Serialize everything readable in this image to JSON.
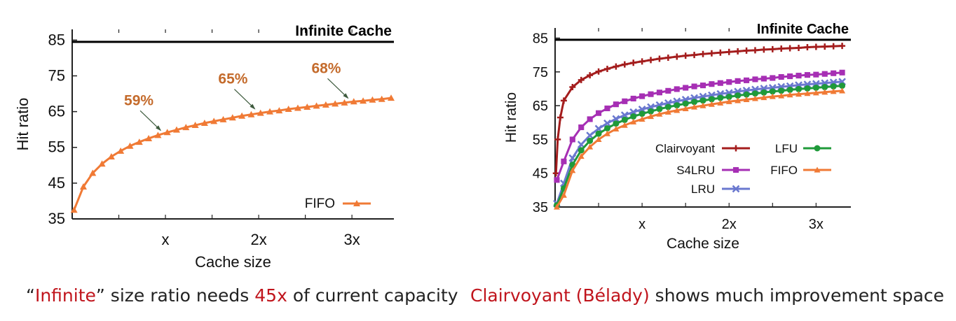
{
  "charts": {
    "chart_data": [
      {
        "type": "line",
        "title": "",
        "xlabel": "Cache size",
        "ylabel": "Hit ratio",
        "xlim": [
          0,
          3.45
        ],
        "ylim": [
          35,
          88
        ],
        "yticks": [
          35,
          45,
          55,
          65,
          75,
          85
        ],
        "xticks": [
          {
            "v": 1,
            "label": "x"
          },
          {
            "v": 2,
            "label": "2x"
          },
          {
            "v": 3,
            "label": "3x"
          }
        ],
        "grid": false,
        "legend": "bottom-right",
        "reference_line": {
          "label": "Infinite Cache",
          "y": 84.5
        },
        "annotations": [
          {
            "text": "59%",
            "x": 0.97,
            "y": 59
          },
          {
            "text": "65%",
            "x": 1.98,
            "y": 65
          },
          {
            "text": "68%",
            "x": 2.98,
            "y": 68
          }
        ],
        "series": [
          {
            "name": "FIFO",
            "color": "#f07a35",
            "marker": "triangle",
            "x": [
              0.02,
              0.12,
              0.22,
              0.32,
              0.42,
              0.52,
              0.62,
              0.72,
              0.82,
              0.92,
              1.02,
              1.12,
              1.22,
              1.32,
              1.42,
              1.52,
              1.62,
              1.72,
              1.82,
              1.92,
              2.02,
              2.12,
              2.22,
              2.32,
              2.42,
              2.52,
              2.62,
              2.72,
              2.82,
              2.92,
              3.02,
              3.12,
              3.22,
              3.32,
              3.42
            ],
            "values": [
              37.5,
              44.0,
              47.8,
              50.4,
              52.4,
              54.0,
              55.4,
              56.5,
              57.5,
              58.4,
              59.2,
              59.9,
              60.6,
              61.2,
              61.8,
              62.3,
              62.8,
              63.3,
              63.8,
              64.2,
              64.6,
              65.0,
              65.3,
              65.7,
              66.0,
              66.3,
              66.6,
              66.9,
              67.2,
              67.5,
              67.8,
              68.0,
              68.3,
              68.5,
              68.8
            ]
          }
        ]
      },
      {
        "type": "line",
        "title": "",
        "xlabel": "Cache size",
        "ylabel": "Hit ratio",
        "xlim": [
          0,
          3.4
        ],
        "ylim": [
          35,
          88
        ],
        "yticks": [
          35,
          45,
          55,
          65,
          75,
          85
        ],
        "xticks": [
          {
            "v": 1,
            "label": "x"
          },
          {
            "v": 2,
            "label": "2x"
          },
          {
            "v": 3,
            "label": "3x"
          }
        ],
        "grid": false,
        "legend": "center",
        "reference_line": {
          "label": "Infinite Cache",
          "y": 84.5
        },
        "series": [
          {
            "name": "Clairvoyant",
            "color": "#a41d1d",
            "marker": "plus",
            "x": [
              0.01,
              0.03,
              0.06,
              0.1,
              0.2,
              0.3,
              0.4,
              0.5,
              0.6,
              0.7,
              0.8,
              0.9,
              1.0,
              1.1,
              1.2,
              1.3,
              1.4,
              1.5,
              1.6,
              1.7,
              1.8,
              1.9,
              2.0,
              2.1,
              2.2,
              2.3,
              2.4,
              2.5,
              2.6,
              2.7,
              2.8,
              2.9,
              3.0,
              3.1,
              3.2,
              3.3
            ],
            "values": [
              45.0,
              55.0,
              61.5,
              66.5,
              70.5,
              72.6,
              74.0,
              75.1,
              75.9,
              76.6,
              77.2,
              77.7,
              78.1,
              78.5,
              78.9,
              79.2,
              79.5,
              79.8,
              80.0,
              80.3,
              80.5,
              80.7,
              80.9,
              81.1,
              81.3,
              81.4,
              81.6,
              81.7,
              81.9,
              82.0,
              82.1,
              82.3,
              82.4,
              82.5,
              82.6,
              82.7
            ]
          },
          {
            "name": "S4LRU",
            "color": "#a62fb4",
            "marker": "square",
            "x": [
              0.02,
              0.1,
              0.2,
              0.3,
              0.4,
              0.5,
              0.6,
              0.7,
              0.8,
              0.9,
              1.0,
              1.1,
              1.2,
              1.3,
              1.4,
              1.5,
              1.6,
              1.7,
              1.8,
              1.9,
              2.0,
              2.1,
              2.2,
              2.3,
              2.4,
              2.5,
              2.6,
              2.7,
              2.8,
              2.9,
              3.0,
              3.1,
              3.2,
              3.3
            ],
            "values": [
              43.0,
              48.5,
              55.0,
              58.6,
              61.0,
              62.8,
              64.2,
              65.4,
              66.3,
              67.1,
              67.8,
              68.4,
              68.9,
              69.4,
              69.9,
              70.3,
              70.7,
              71.0,
              71.4,
              71.7,
              72.0,
              72.3,
              72.5,
              72.8,
              73.0,
              73.2,
              73.5,
              73.7,
              73.9,
              74.1,
              74.2,
              74.4,
              74.6,
              74.8
            ]
          },
          {
            "name": "LRU",
            "color": "#6a78cf",
            "marker": "x",
            "x": [
              0.02,
              0.1,
              0.2,
              0.3,
              0.4,
              0.5,
              0.6,
              0.7,
              0.8,
              0.9,
              1.0,
              1.1,
              1.2,
              1.3,
              1.4,
              1.5,
              1.6,
              1.7,
              1.8,
              1.9,
              2.0,
              2.1,
              2.2,
              2.3,
              2.4,
              2.5,
              2.6,
              2.7,
              2.8,
              2.9,
              3.0,
              3.1,
              3.2,
              3.3
            ],
            "values": [
              36.0,
              42.0,
              49.5,
              53.5,
              56.2,
              58.2,
              59.8,
              61.1,
              62.2,
              63.1,
              63.9,
              64.6,
              65.2,
              65.8,
              66.3,
              66.8,
              67.3,
              67.7,
              68.1,
              68.5,
              68.8,
              69.2,
              69.5,
              69.8,
              70.1,
              70.3,
              70.6,
              70.8,
              71.1,
              71.3,
              71.5,
              71.7,
              71.9,
              72.1
            ]
          },
          {
            "name": "LFU",
            "color": "#1f9a3a",
            "marker": "circle",
            "x": [
              0.02,
              0.1,
              0.2,
              0.3,
              0.4,
              0.5,
              0.6,
              0.7,
              0.8,
              0.9,
              1.0,
              1.1,
              1.2,
              1.3,
              1.4,
              1.5,
              1.6,
              1.7,
              1.8,
              1.9,
              2.0,
              2.1,
              2.2,
              2.3,
              2.4,
              2.5,
              2.6,
              2.7,
              2.8,
              2.9,
              3.0,
              3.1,
              3.2,
              3.3
            ],
            "values": [
              35.5,
              40.5,
              47.5,
              51.8,
              54.6,
              56.7,
              58.3,
              59.7,
              60.8,
              61.8,
              62.6,
              63.3,
              64.0,
              64.6,
              65.1,
              65.6,
              66.1,
              66.5,
              66.9,
              67.3,
              67.6,
              68.0,
              68.3,
              68.6,
              68.9,
              69.2,
              69.4,
              69.7,
              69.9,
              70.1,
              70.3,
              70.5,
              70.7,
              70.9
            ]
          },
          {
            "name": "FIFO",
            "color": "#f07a35",
            "marker": "triangle",
            "x": [
              0.02,
              0.1,
              0.2,
              0.3,
              0.4,
              0.5,
              0.6,
              0.7,
              0.8,
              0.9,
              1.0,
              1.1,
              1.2,
              1.3,
              1.4,
              1.5,
              1.6,
              1.7,
              1.8,
              1.9,
              2.0,
              2.1,
              2.2,
              2.3,
              2.4,
              2.5,
              2.6,
              2.7,
              2.8,
              2.9,
              3.0,
              3.1,
              3.2,
              3.3
            ],
            "values": [
              35.0,
              38.5,
              45.8,
              50.0,
              52.8,
              55.0,
              56.7,
              58.1,
              59.2,
              60.2,
              61.0,
              61.8,
              62.5,
              63.1,
              63.6,
              64.1,
              64.6,
              65.0,
              65.4,
              65.8,
              66.2,
              66.5,
              66.8,
              67.1,
              67.4,
              67.7,
              67.9,
              68.2,
              68.4,
              68.6,
              68.8,
              69.0,
              69.2,
              69.4
            ]
          }
        ]
      }
    ]
  },
  "captions": {
    "left": {
      "q_open": "“",
      "hl1": "Infinite",
      "mid": "” size ratio needs ",
      "hl2": "45x",
      "tail": " of current capacity"
    },
    "right": {
      "hl1": "Clairvoyant (Bélady)",
      "tail": " shows much improvement space"
    }
  }
}
